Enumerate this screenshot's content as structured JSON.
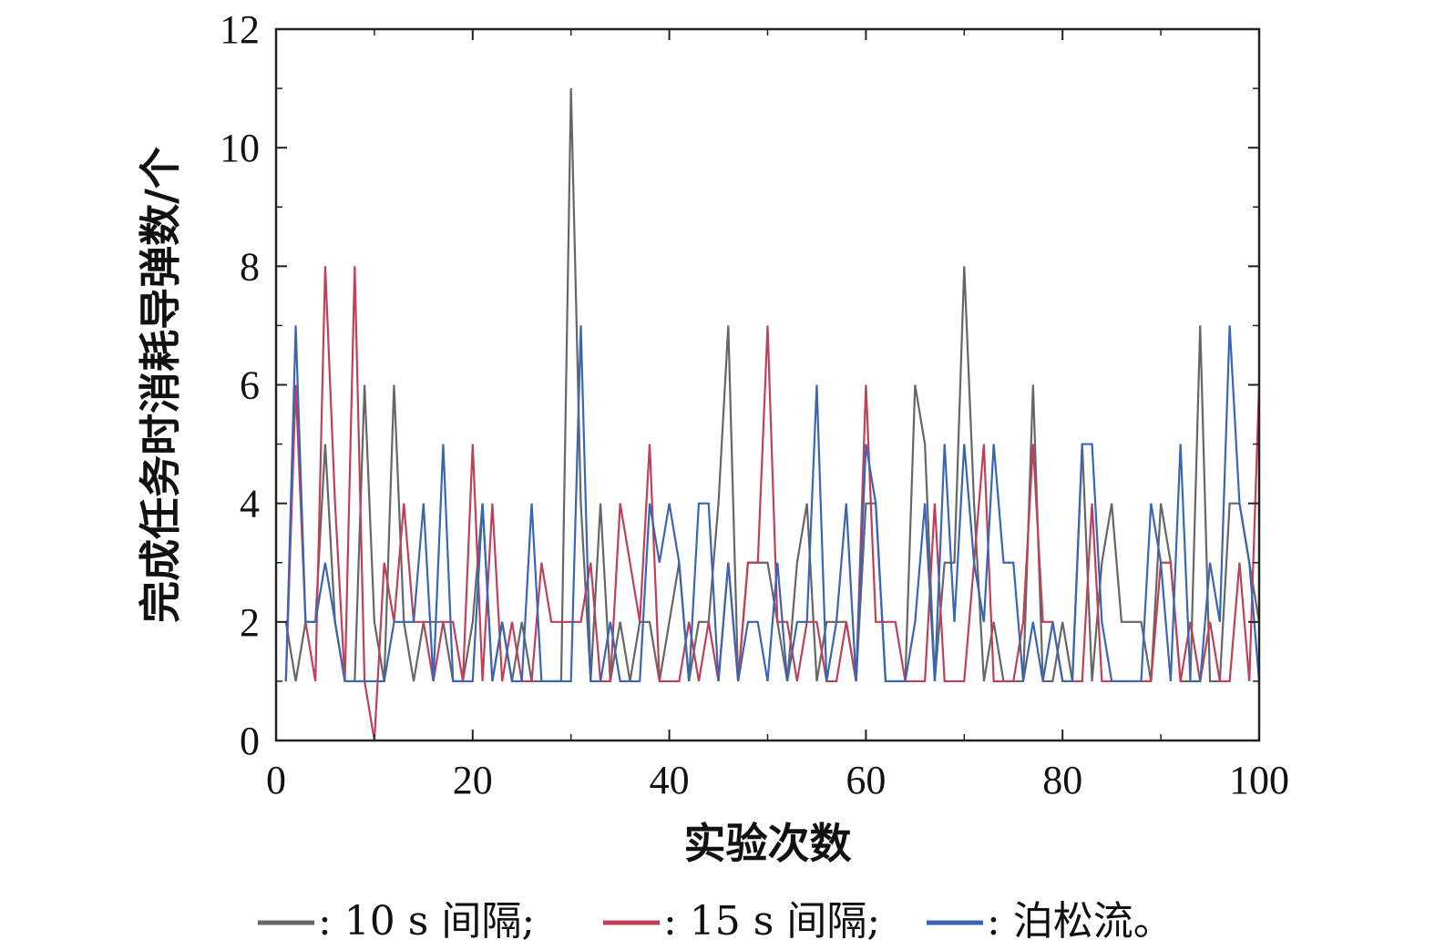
{
  "chart_data": {
    "type": "line",
    "title": "",
    "xlabel": "实验次数",
    "ylabel": "完成任务时消耗导弹数/个",
    "xlim": [
      0,
      100
    ],
    "ylim": [
      0,
      12
    ],
    "xticks": [
      0,
      20,
      40,
      60,
      80,
      100
    ],
    "yticks": [
      0,
      2,
      4,
      6,
      8,
      10,
      12
    ],
    "grid": false,
    "legend_position": "bottom",
    "x": [
      1,
      2,
      3,
      4,
      5,
      6,
      7,
      8,
      9,
      10,
      11,
      12,
      13,
      14,
      15,
      16,
      17,
      18,
      19,
      20,
      21,
      22,
      23,
      24,
      25,
      26,
      27,
      28,
      29,
      30,
      31,
      32,
      33,
      34,
      35,
      36,
      37,
      38,
      39,
      40,
      41,
      42,
      43,
      44,
      45,
      46,
      47,
      48,
      49,
      50,
      51,
      52,
      53,
      54,
      55,
      56,
      57,
      58,
      59,
      60,
      61,
      62,
      63,
      64,
      65,
      66,
      67,
      68,
      69,
      70,
      71,
      72,
      73,
      74,
      75,
      76,
      77,
      78,
      79,
      80,
      81,
      82,
      83,
      84,
      85,
      86,
      87,
      88,
      89,
      90,
      91,
      92,
      93,
      94,
      95,
      96,
      97,
      98,
      99,
      100
    ],
    "series": [
      {
        "name": ": 10 s 间隔;",
        "color": "#666666",
        "values": [
          2,
          1,
          2,
          2,
          5,
          2,
          1,
          1,
          6,
          2,
          1,
          6,
          2,
          1,
          2,
          2,
          2,
          1,
          1,
          2,
          4,
          1,
          2,
          1,
          2,
          1,
          1,
          1,
          1,
          11,
          4,
          1,
          4,
          1,
          2,
          1,
          2,
          2,
          1,
          2,
          3,
          1,
          2,
          2,
          4,
          7,
          1,
          3,
          3,
          3,
          2,
          1,
          3,
          4,
          1,
          2,
          2,
          2,
          1,
          4,
          4,
          1,
          1,
          1,
          6,
          5,
          1,
          3,
          3,
          8,
          4,
          1,
          2,
          1,
          1,
          1,
          6,
          1,
          1,
          2,
          1,
          5,
          1,
          3,
          4,
          2,
          2,
          2,
          1,
          4,
          3,
          1,
          1,
          7,
          1,
          1,
          4,
          4,
          3,
          2
        ]
      },
      {
        "name": ": 15 s 间隔;",
        "color": "#c0405a",
        "values": [
          1,
          6,
          2,
          1,
          8,
          4,
          1,
          8,
          1,
          0,
          3,
          2,
          4,
          2,
          2,
          1,
          2,
          2,
          1,
          5,
          1,
          4,
          1,
          2,
          1,
          1,
          3,
          2,
          2,
          2,
          2,
          3,
          1,
          1,
          4,
          3,
          2,
          5,
          1,
          1,
          1,
          2,
          1,
          2,
          1,
          3,
          1,
          3,
          3,
          7,
          2,
          2,
          1,
          2,
          2,
          1,
          1,
          2,
          1,
          6,
          2,
          2,
          2,
          1,
          1,
          1,
          4,
          1,
          1,
          1,
          3,
          5,
          1,
          1,
          1,
          2,
          5,
          2,
          2,
          1,
          1,
          1,
          4,
          1,
          1,
          1,
          1,
          1,
          1,
          3,
          3,
          1,
          2,
          1,
          2,
          1,
          1,
          3,
          1,
          6
        ]
      },
      {
        "name": ": 泊松流。",
        "color": "#3a64b4",
        "values": [
          1,
          7,
          2,
          2,
          3,
          2,
          1,
          1,
          1,
          1,
          1,
          2,
          2,
          2,
          4,
          1,
          5,
          1,
          1,
          1,
          4,
          1,
          2,
          1,
          1,
          4,
          1,
          1,
          1,
          1,
          7,
          1,
          1,
          2,
          1,
          1,
          1,
          4,
          3,
          4,
          3,
          1,
          4,
          4,
          1,
          3,
          1,
          2,
          2,
          1,
          3,
          1,
          2,
          2,
          6,
          1,
          2,
          4,
          1,
          5,
          4,
          1,
          1,
          1,
          2,
          4,
          1,
          5,
          2,
          5,
          3,
          2,
          5,
          3,
          3,
          1,
          2,
          1,
          2,
          1,
          1,
          5,
          5,
          2,
          1,
          1,
          1,
          1,
          4,
          3,
          1,
          5,
          1,
          1,
          3,
          2,
          7,
          4,
          3,
          1
        ]
      }
    ]
  }
}
